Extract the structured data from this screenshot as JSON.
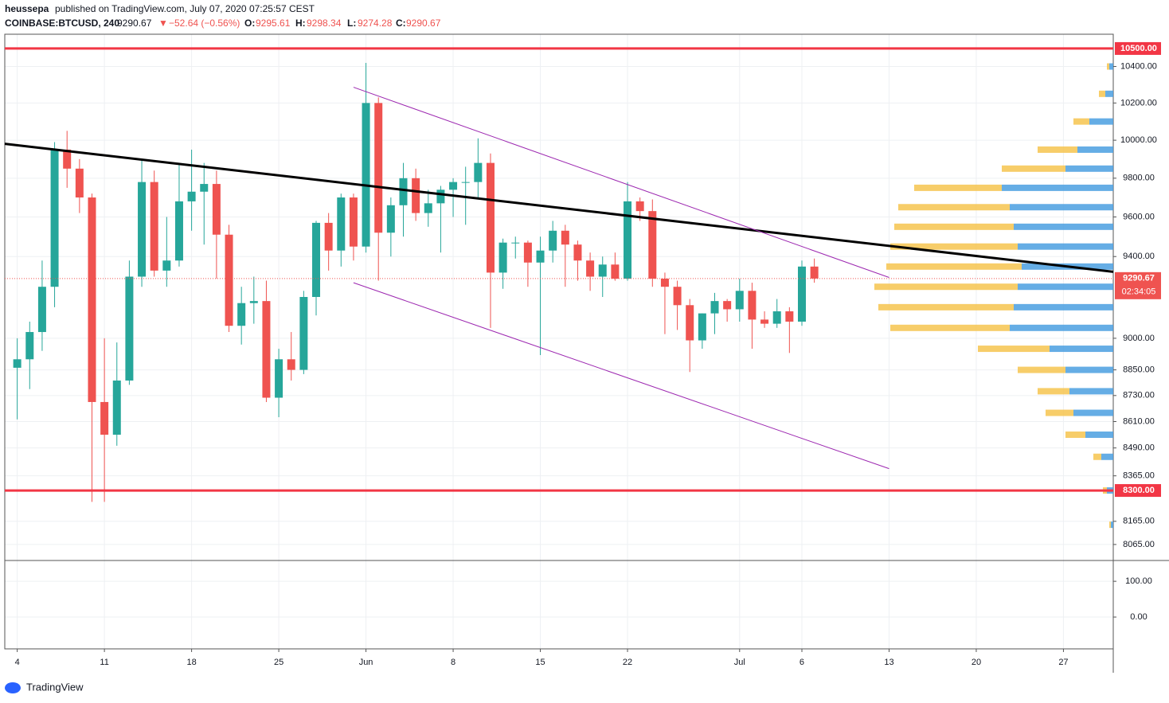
{
  "header": {
    "author": "heussepa",
    "byline": "published on TradingView.com, July 07, 2020 07:25:57 CEST",
    "symbol": "COINBASE:BTCUSD, 240",
    "last": "9290.67",
    "arrow": "▼",
    "change": "−52.64 (−0.56%)",
    "o_label": "O:",
    "o": "9295.61",
    "h_label": "H:",
    "h": "9298.34",
    "l_label": "L:",
    "l": "9274.28",
    "c_label": "C:",
    "c": "9290.67"
  },
  "chart_data": {
    "type": "candlestick",
    "log_scale": true,
    "grid": true,
    "up_color": "#26a69a",
    "down_color": "#ef5350",
    "xlim": [
      "2020-05-03",
      "2020-07-31"
    ],
    "ylim": [
      8000,
      10580
    ],
    "xticks": [
      {
        "value": "2020-05-04",
        "label": "4"
      },
      {
        "value": "2020-05-11",
        "label": "11"
      },
      {
        "value": "2020-05-18",
        "label": "18"
      },
      {
        "value": "2020-05-25",
        "label": "25"
      },
      {
        "value": "2020-06-01",
        "label": "Jun"
      },
      {
        "value": "2020-06-08",
        "label": "8"
      },
      {
        "value": "2020-06-15",
        "label": "15"
      },
      {
        "value": "2020-06-22",
        "label": "22"
      },
      {
        "value": "2020-07-01",
        "label": "Jul"
      },
      {
        "value": "2020-07-06",
        "label": "6"
      },
      {
        "value": "2020-07-13",
        "label": "13"
      },
      {
        "value": "2020-07-20",
        "label": "20"
      },
      {
        "value": "2020-07-27",
        "label": "27"
      }
    ],
    "yticks": [
      {
        "value": 10400,
        "label": "10400.00"
      },
      {
        "value": 10200,
        "label": "10200.00"
      },
      {
        "value": 10000,
        "label": "10000.00"
      },
      {
        "value": 9800,
        "label": "9800.00"
      },
      {
        "value": 9600,
        "label": "9600.00"
      },
      {
        "value": 9400,
        "label": "9400.00"
      },
      {
        "value": 9000,
        "label": "9000.00"
      },
      {
        "value": 8850,
        "label": "8850.00"
      },
      {
        "value": 8730,
        "label": "8730.00"
      },
      {
        "value": 8610,
        "label": "8610.00"
      },
      {
        "value": 8490,
        "label": "8490.00"
      },
      {
        "value": 8365,
        "label": "8365.00"
      },
      {
        "value": 8165,
        "label": "8165.00"
      },
      {
        "value": 8065,
        "label": "8065.00"
      }
    ],
    "x": [
      "2020-05-04",
      "2020-05-05",
      "2020-05-06",
      "2020-05-07",
      "2020-05-08",
      "2020-05-09",
      "2020-05-10",
      "2020-05-11",
      "2020-05-12",
      "2020-05-13",
      "2020-05-14",
      "2020-05-15",
      "2020-05-16",
      "2020-05-17",
      "2020-05-18",
      "2020-05-19",
      "2020-05-20",
      "2020-05-21",
      "2020-05-22",
      "2020-05-23",
      "2020-05-24",
      "2020-05-25",
      "2020-05-26",
      "2020-05-27",
      "2020-05-28",
      "2020-05-29",
      "2020-05-30",
      "2020-05-31",
      "2020-06-01",
      "2020-06-02",
      "2020-06-03",
      "2020-06-04",
      "2020-06-05",
      "2020-06-06",
      "2020-06-07",
      "2020-06-08",
      "2020-06-09",
      "2020-06-10",
      "2020-06-11",
      "2020-06-12",
      "2020-06-13",
      "2020-06-14",
      "2020-06-15",
      "2020-06-16",
      "2020-06-17",
      "2020-06-18",
      "2020-06-19",
      "2020-06-20",
      "2020-06-21",
      "2020-06-22",
      "2020-06-23",
      "2020-06-24",
      "2020-06-25",
      "2020-06-26",
      "2020-06-27",
      "2020-06-28",
      "2020-06-29",
      "2020-06-30",
      "2020-07-01",
      "2020-07-02",
      "2020-07-03",
      "2020-07-04",
      "2020-07-05",
      "2020-07-06",
      "2020-07-07"
    ],
    "open": [
      8860,
      8900,
      9030,
      9250,
      9950,
      9850,
      9700,
      8700,
      8550,
      8800,
      9300,
      9780,
      9330,
      9380,
      9680,
      9730,
      9770,
      9510,
      9060,
      9170,
      9180,
      8720,
      8900,
      8850,
      9200,
      9570,
      9430,
      9700,
      9450,
      10200,
      9520,
      9660,
      9800,
      9620,
      9670,
      9740,
      9780,
      9780,
      9880,
      9320,
      9470,
      9470,
      9370,
      9430,
      9530,
      9460,
      9380,
      9300,
      9360,
      9290,
      9680,
      9630,
      9290,
      9250,
      9160,
      8990,
      9120,
      9180,
      9140,
      9230,
      9090,
      9070,
      9130,
      9080,
      9350
    ],
    "high": [
      9000,
      9080,
      9380,
      9990,
      10050,
      9900,
      9720,
      9000,
      8980,
      9380,
      9900,
      9840,
      9600,
      9870,
      9950,
      9880,
      9840,
      9560,
      9250,
      9300,
      9280,
      8950,
      9030,
      9230,
      9580,
      9620,
      9720,
      9720,
      10420,
      10230,
      9700,
      9880,
      9850,
      9740,
      9760,
      9800,
      9860,
      10010,
      9930,
      9490,
      9500,
      9480,
      9500,
      9580,
      9560,
      9480,
      9420,
      9400,
      9420,
      9780,
      9700,
      9690,
      9320,
      9280,
      9190,
      9120,
      9220,
      9190,
      9290,
      9270,
      9130,
      9190,
      9150,
      9380,
      9390
    ],
    "low": [
      8620,
      8760,
      8940,
      9150,
      9750,
      9620,
      8250,
      8250,
      8500,
      8780,
      9250,
      9300,
      9250,
      9350,
      9530,
      9460,
      9290,
      9030,
      8970,
      9070,
      8700,
      8630,
      8800,
      8830,
      9110,
      9330,
      9350,
      9380,
      9420,
      9280,
      9400,
      9500,
      9580,
      9550,
      9420,
      9600,
      9560,
      9690,
      9050,
      9240,
      9390,
      9250,
      8920,
      9370,
      9250,
      9280,
      9230,
      9200,
      9280,
      9280,
      9580,
      9250,
      9020,
      9040,
      8840,
      8950,
      9020,
      9080,
      9080,
      8950,
      9050,
      9050,
      8930,
      9060,
      9270
    ],
    "close": [
      8900,
      9030,
      9250,
      9950,
      9850,
      9700,
      8700,
      8550,
      8800,
      9300,
      9780,
      9330,
      9380,
      9680,
      9730,
      9770,
      9510,
      9060,
      9170,
      9180,
      8720,
      8900,
      8850,
      9200,
      9570,
      9430,
      9700,
      9450,
      10200,
      9520,
      9660,
      9800,
      9620,
      9670,
      9740,
      9780,
      9780,
      9880,
      9320,
      9470,
      9470,
      9370,
      9430,
      9530,
      9460,
      9380,
      9300,
      9360,
      9290,
      9680,
      9630,
      9290,
      9250,
      9160,
      8990,
      9120,
      9180,
      9140,
      9230,
      9090,
      9070,
      9130,
      9080,
      9350,
      9290.67
    ],
    "levels": [
      {
        "value": 10500,
        "label": "10500.00",
        "color": "#f23645"
      },
      {
        "value": 8300,
        "label": "8300.00",
        "color": "#f23645"
      }
    ],
    "last_price": {
      "value": 9290.67,
      "label": "9290.67",
      "countdown": "02:34:05",
      "color": "#ef5350"
    },
    "trendlines": [
      {
        "x": [
          "2020-05-03",
          "2020-07-31"
        ],
        "y": [
          9981,
          9324
        ],
        "color": "#000000",
        "width": 3
      },
      {
        "x": [
          "2020-05-31",
          "2020-07-13"
        ],
        "y": [
          10286,
          9296
        ],
        "color": "#9c27b0",
        "width": 1
      },
      {
        "x": [
          "2020-05-31",
          "2020-07-13"
        ],
        "y": [
          9270,
          8397
        ],
        "color": "#9c27b0",
        "width": 1
      }
    ],
    "volume_profile": {
      "prices": [
        10400,
        10250,
        10100,
        9950,
        9850,
        9750,
        9650,
        9550,
        9450,
        9350,
        9250,
        9150,
        9050,
        8950,
        8850,
        8750,
        8650,
        8550,
        8450,
        8300,
        8150
      ],
      "up": [
        5,
        10,
        30,
        45,
        60,
        140,
        130,
        125,
        120,
        115,
        120,
        125,
        130,
        80,
        60,
        55,
        50,
        35,
        15,
        8,
        3
      ],
      "down": [
        3,
        8,
        20,
        50,
        80,
        110,
        140,
        150,
        160,
        170,
        180,
        170,
        150,
        90,
        60,
        40,
        35,
        25,
        10,
        5,
        2
      ],
      "up_color": "#4a9fe0",
      "down_color": "#f6c44f"
    },
    "lower_pane": {
      "ylim": [
        -89,
        156
      ],
      "yticks": [
        {
          "value": 100,
          "label": "100.00"
        },
        {
          "value": 0,
          "label": "0.00"
        }
      ]
    }
  },
  "footer": {
    "brand": "TradingView"
  }
}
